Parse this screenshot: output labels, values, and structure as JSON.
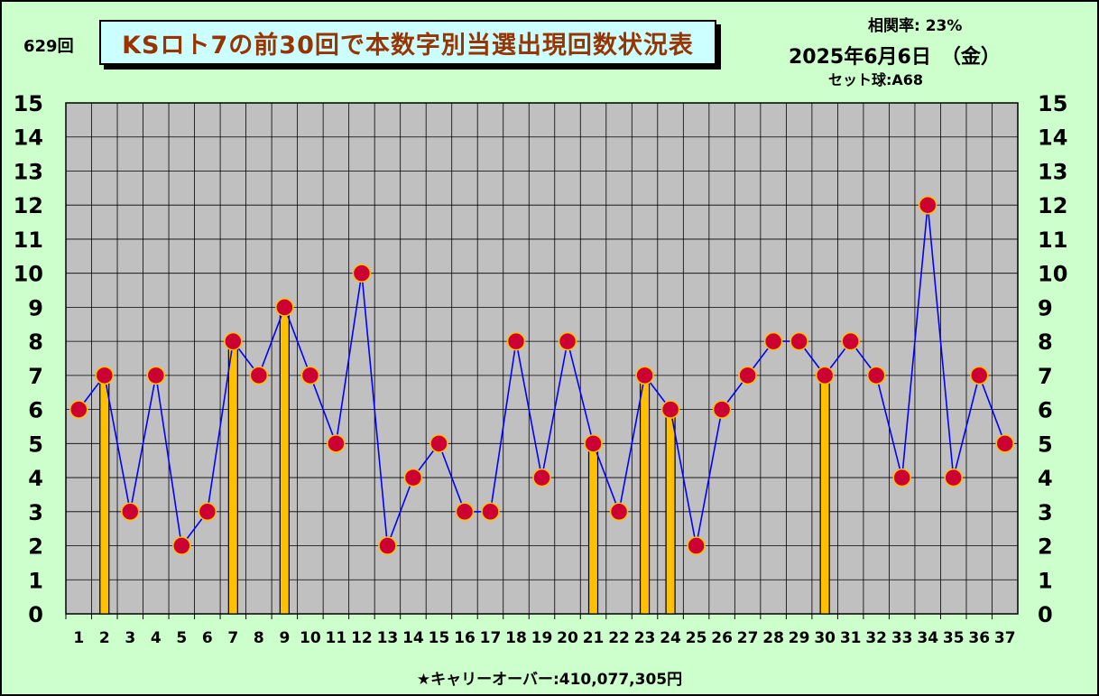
{
  "header": {
    "draw_number": "629回",
    "title": "KSロト7の前30回で本数字別当選出現回数状況表",
    "correlation": "相関率:  23%",
    "date": "2025年6月6日　（金）",
    "set_ball": "セット球:A68"
  },
  "footer": {
    "carryover": "★キャリーオーバー:410,077,305円"
  },
  "colors": {
    "background": "#ccffcc",
    "plot_area": "#c0c0c0",
    "line": "#0000ff",
    "marker_fill": "#cc0033",
    "bar": "#ffc000",
    "title_box": "#ccffff",
    "title_text": "#993300"
  },
  "chart_data": {
    "type": "line",
    "title": "KSロト7の前30回で本数字別当選出現回数状況表",
    "categories": [
      "1",
      "2",
      "3",
      "4",
      "5",
      "6",
      "7",
      "8",
      "9",
      "10",
      "11",
      "12",
      "13",
      "14",
      "15",
      "16",
      "17",
      "18",
      "19",
      "20",
      "21",
      "22",
      "23",
      "24",
      "25",
      "26",
      "27",
      "28",
      "29",
      "30",
      "31",
      "32",
      "33",
      "34",
      "35",
      "36",
      "37"
    ],
    "series": [
      {
        "values": [
          6,
          7,
          3,
          7,
          2,
          3,
          8,
          7,
          9,
          7,
          5,
          10,
          2,
          4,
          5,
          3,
          3,
          8,
          4,
          8,
          5,
          3,
          7,
          6,
          2,
          6,
          7,
          8,
          8,
          7,
          8,
          7,
          4,
          12,
          4,
          7,
          5
        ],
        "style": "line-with-markers"
      }
    ],
    "highlight_bars": [
      {
        "category": "2",
        "value": 7
      },
      {
        "category": "7",
        "value": 8
      },
      {
        "category": "9",
        "value": 9
      },
      {
        "category": "21",
        "value": 5
      },
      {
        "category": "23",
        "value": 7
      },
      {
        "category": "24",
        "value": 6
      },
      {
        "category": "30",
        "value": 7
      }
    ],
    "ylim": [
      0,
      15
    ],
    "y_ticks": [
      0,
      1,
      2,
      3,
      4,
      5,
      6,
      7,
      8,
      9,
      10,
      11,
      12,
      13,
      14,
      15
    ],
    "y_axis_both_sides": true,
    "grid": true
  }
}
